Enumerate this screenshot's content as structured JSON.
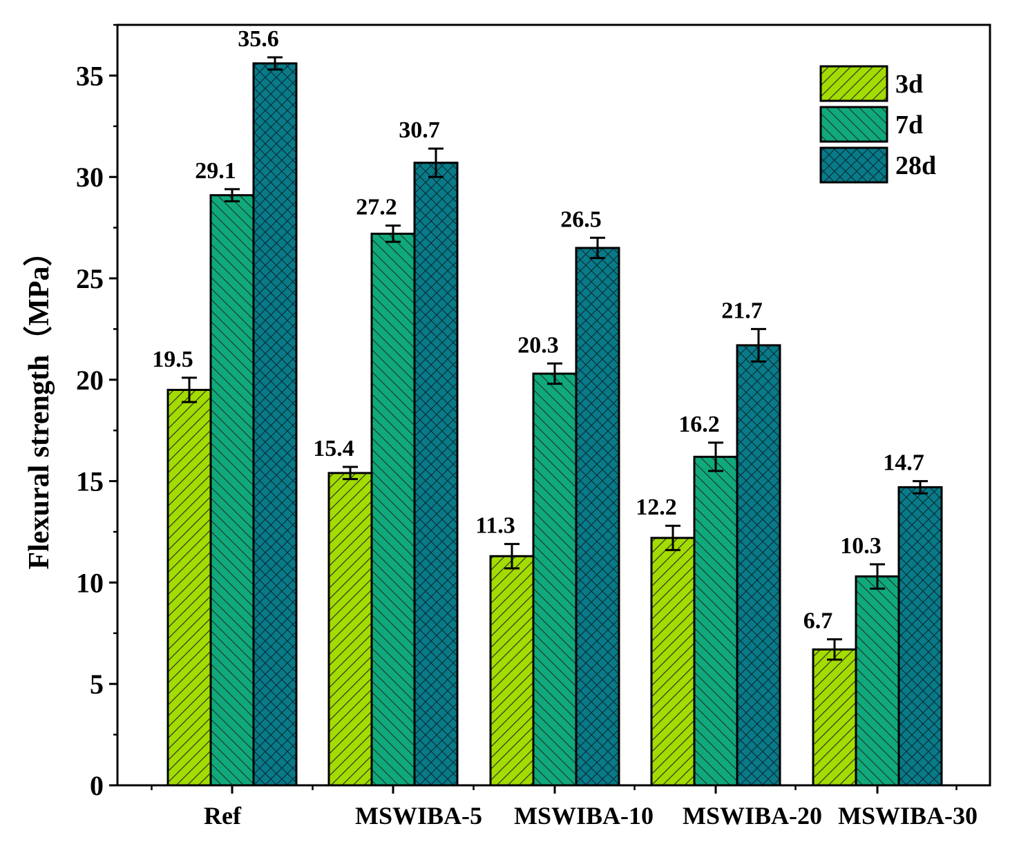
{
  "chart_data": {
    "type": "bar",
    "title": "",
    "xlabel": "",
    "ylabel": "Flexural strength（MPa）",
    "ylim": [
      0,
      37.5
    ],
    "yticks": [
      0,
      5,
      10,
      15,
      20,
      25,
      30,
      35
    ],
    "categories": [
      "Ref",
      "MSWIBA-5",
      "MSWIBA-10",
      "MSWIBA-20",
      "MSWIBA-30"
    ],
    "legend_position": "top-right",
    "series": [
      {
        "name": "3d",
        "color": "#a2dc00",
        "pattern": "single-hatch",
        "values": [
          19.5,
          15.4,
          11.3,
          12.2,
          6.7
        ],
        "errors": [
          0.6,
          0.3,
          0.6,
          0.6,
          0.5
        ],
        "labels": [
          "19.5",
          "15.4",
          "11.3",
          "12.2",
          "6.7"
        ]
      },
      {
        "name": "7d",
        "color": "#10a97b",
        "pattern": "single-hatch",
        "values": [
          29.1,
          27.2,
          20.3,
          16.2,
          10.3
        ],
        "errors": [
          0.3,
          0.4,
          0.5,
          0.7,
          0.6
        ],
        "labels": [
          "29.1",
          "27.2",
          "20.3",
          "16.2",
          "10.3"
        ]
      },
      {
        "name": "28d",
        "color": "#087a88",
        "pattern": "cross-hatch",
        "values": [
          35.6,
          30.7,
          26.5,
          21.7,
          14.7
        ],
        "errors": [
          0.3,
          0.7,
          0.5,
          0.8,
          0.3
        ],
        "labels": [
          "35.6",
          "30.7",
          "26.5",
          "21.7",
          "14.7"
        ]
      }
    ]
  }
}
